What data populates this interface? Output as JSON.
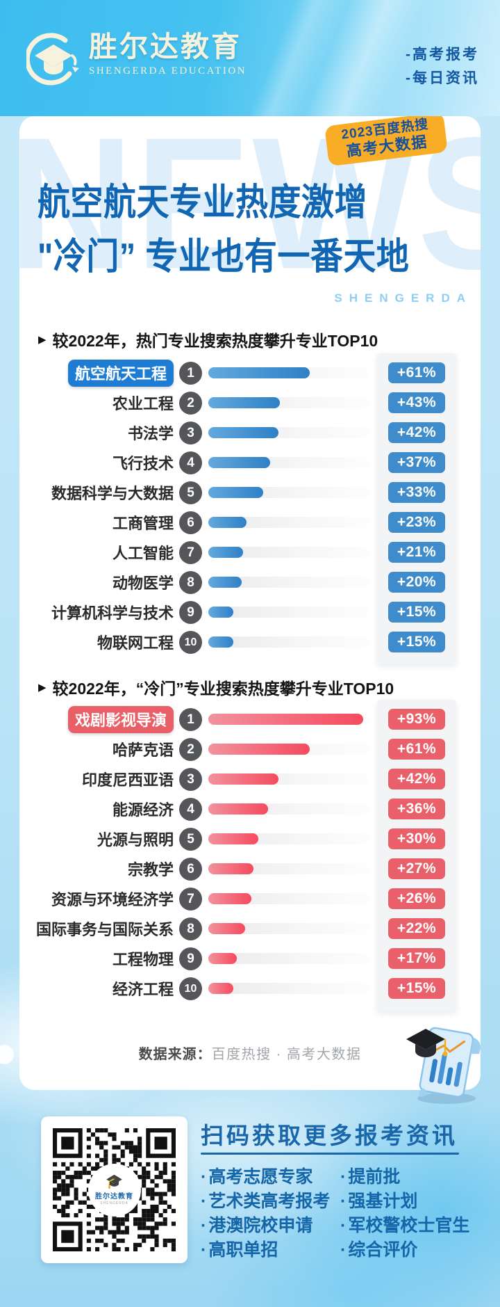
{
  "header": {
    "logo_cn": "胜尔达教育",
    "logo_en": "SHENGERDA EDUCATION",
    "tagline_1": "-高考报考",
    "tagline_2": "-每日资讯"
  },
  "hero": {
    "badge_line1": "2023百度热搜",
    "badge_line2": "高考大数据",
    "title_line1": "航空航天专业热度激增",
    "title_line2": "\"冷门” 专业也有一番天地",
    "watermark": "NEWS",
    "brand_spaced": "SHENGERDA"
  },
  "chart_data": [
    {
      "type": "bar",
      "orientation": "horizontal",
      "title": "较2022年，热门专业搜索热度攀升专业TOP10",
      "categories": [
        "航空航天工程",
        "农业工程",
        "书法学",
        "飞行技术",
        "数据科学与大数据",
        "工商管理",
        "人工智能",
        "动物医学",
        "计算机科学与技术",
        "物联网工程"
      ],
      "values": [
        61,
        43,
        42,
        37,
        33,
        23,
        21,
        20,
        15,
        15
      ],
      "value_labels": [
        "+61%",
        "+43%",
        "+42%",
        "+37%",
        "+33%",
        "+23%",
        "+21%",
        "+20%",
        "+15%",
        "+15%"
      ],
      "ranks": [
        1,
        2,
        3,
        4,
        5,
        6,
        7,
        8,
        9,
        10
      ],
      "highlight_index": 0,
      "accent": "blue",
      "xlim": [
        0,
        100
      ],
      "grid": false,
      "legend": "none"
    },
    {
      "type": "bar",
      "orientation": "horizontal",
      "title": "较2022年，“冷门”专业搜索热度攀升专业TOP10",
      "categories": [
        "戏剧影视导演",
        "哈萨克语",
        "印度尼西亚语",
        "能源经济",
        "光源与照明",
        "宗教学",
        "资源与环境经济学",
        "国际事务与国际关系",
        "工程物理",
        "经济工程"
      ],
      "values": [
        93,
        61,
        42,
        36,
        30,
        27,
        26,
        22,
        17,
        15
      ],
      "value_labels": [
        "+93%",
        "+61%",
        "+42%",
        "+36%",
        "+30%",
        "+27%",
        "+26%",
        "+22%",
        "+17%",
        "+15%"
      ],
      "ranks": [
        1,
        2,
        3,
        4,
        5,
        6,
        7,
        8,
        9,
        10
      ],
      "highlight_index": 0,
      "accent": "red",
      "xlim": [
        0,
        100
      ],
      "grid": false,
      "legend": "none"
    }
  ],
  "source": {
    "label": "数据来源：",
    "value": "百度热搜 · 高考大数据"
  },
  "footer": {
    "title": "扫码获取更多报考资讯",
    "items_left": [
      "高考志愿专家",
      "艺术类高考报考",
      "港澳院校申请",
      "高职单招"
    ],
    "items_right": [
      "提前批",
      "强基计划",
      "军校警校士官生",
      "综合评价"
    ],
    "qr_center_text": "胜尔达教育",
    "qr_center_sub": "SHENGERDA"
  },
  "colors": {
    "header_cyan": "#3DBDEF",
    "logo_cream": "#F7F2DC",
    "badge_orange": "#F9AC25",
    "badge_text_blue": "#14509D",
    "title_blue": "#1166B3",
    "watermark_blue": "#DEEFFB",
    "hot_bar": "#2E80C7",
    "hot_pill": "#1E7CD2",
    "hot_badge": "#3E8CCB",
    "cold_bar": "#F54A5E",
    "cold_pill": "#E95F68",
    "cold_badge": "#E9606A",
    "rank_circle": "#54565A",
    "footer_blue": "#1A66AB"
  }
}
